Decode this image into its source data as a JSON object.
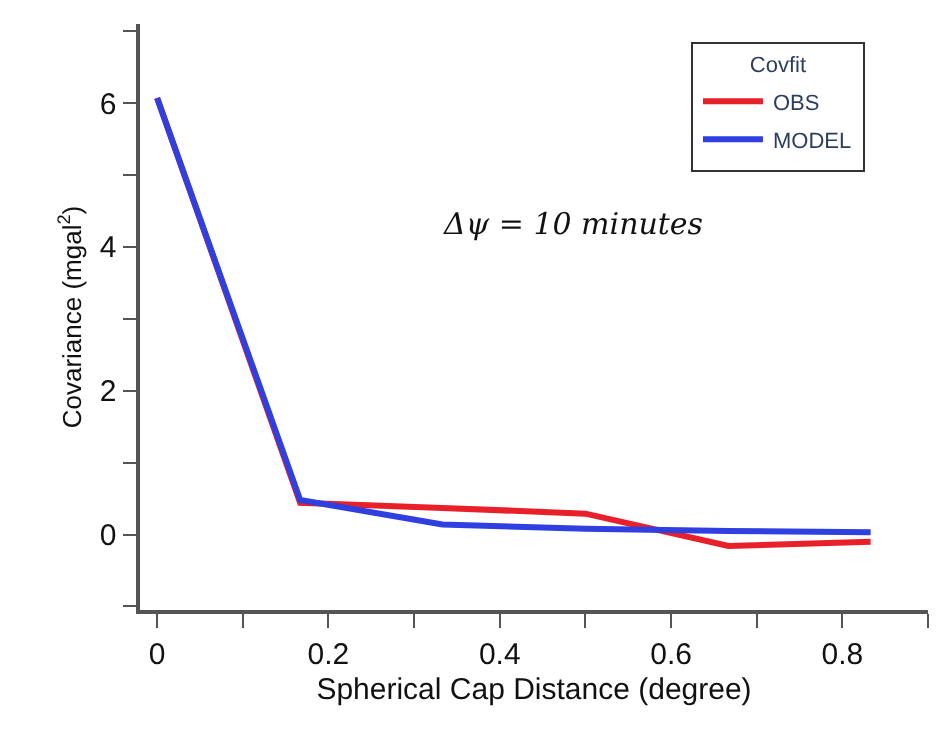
{
  "chart_data": {
    "type": "line",
    "xlabel": "Spherical Cap Distance (degree)",
    "ylabel": "Covariance (mgal$^{2}$)",
    "legend_title": "Covfit",
    "legend": "top right",
    "marker": "none",
    "line_style": "solid",
    "x": [
      0,
      0.167,
      0.333,
      0.5,
      0.667,
      0.833
    ],
    "series": [
      {
        "name": "OBS",
        "color": "#e8202a",
        "values": [
          6.07,
          0.44,
          0.37,
          0.29,
          -0.16,
          -0.1
        ]
      },
      {
        "name": "MODEL",
        "color": "#2f3fe0",
        "values": [
          6.07,
          0.48,
          0.14,
          0.08,
          0.05,
          0.03
        ]
      }
    ],
    "annotations": [
      "Δψ = 10 minutes"
    ],
    "xlim": [
      -0.02,
      0.9
    ],
    "xticks": [
      0,
      {
        "value": 0.1,
        "label": null
      },
      0.2,
      {
        "value": 0.3,
        "label": null
      },
      0.4,
      {
        "value": 0.5,
        "label": null
      },
      0.6,
      {
        "value": 0.7,
        "label": null
      },
      0.8,
      {
        "value": 0.9,
        "label": null
      }
    ],
    "ylim": [
      -1.05,
      7.1
    ],
    "yticks": [
      {
        "value": -1,
        "label": null
      },
      0,
      {
        "value": 1,
        "label": null
      },
      2,
      {
        "value": 3,
        "label": null
      },
      4,
      {
        "value": 5,
        "label": null
      },
      6,
      {
        "value": 7,
        "label": null
      }
    ]
  }
}
